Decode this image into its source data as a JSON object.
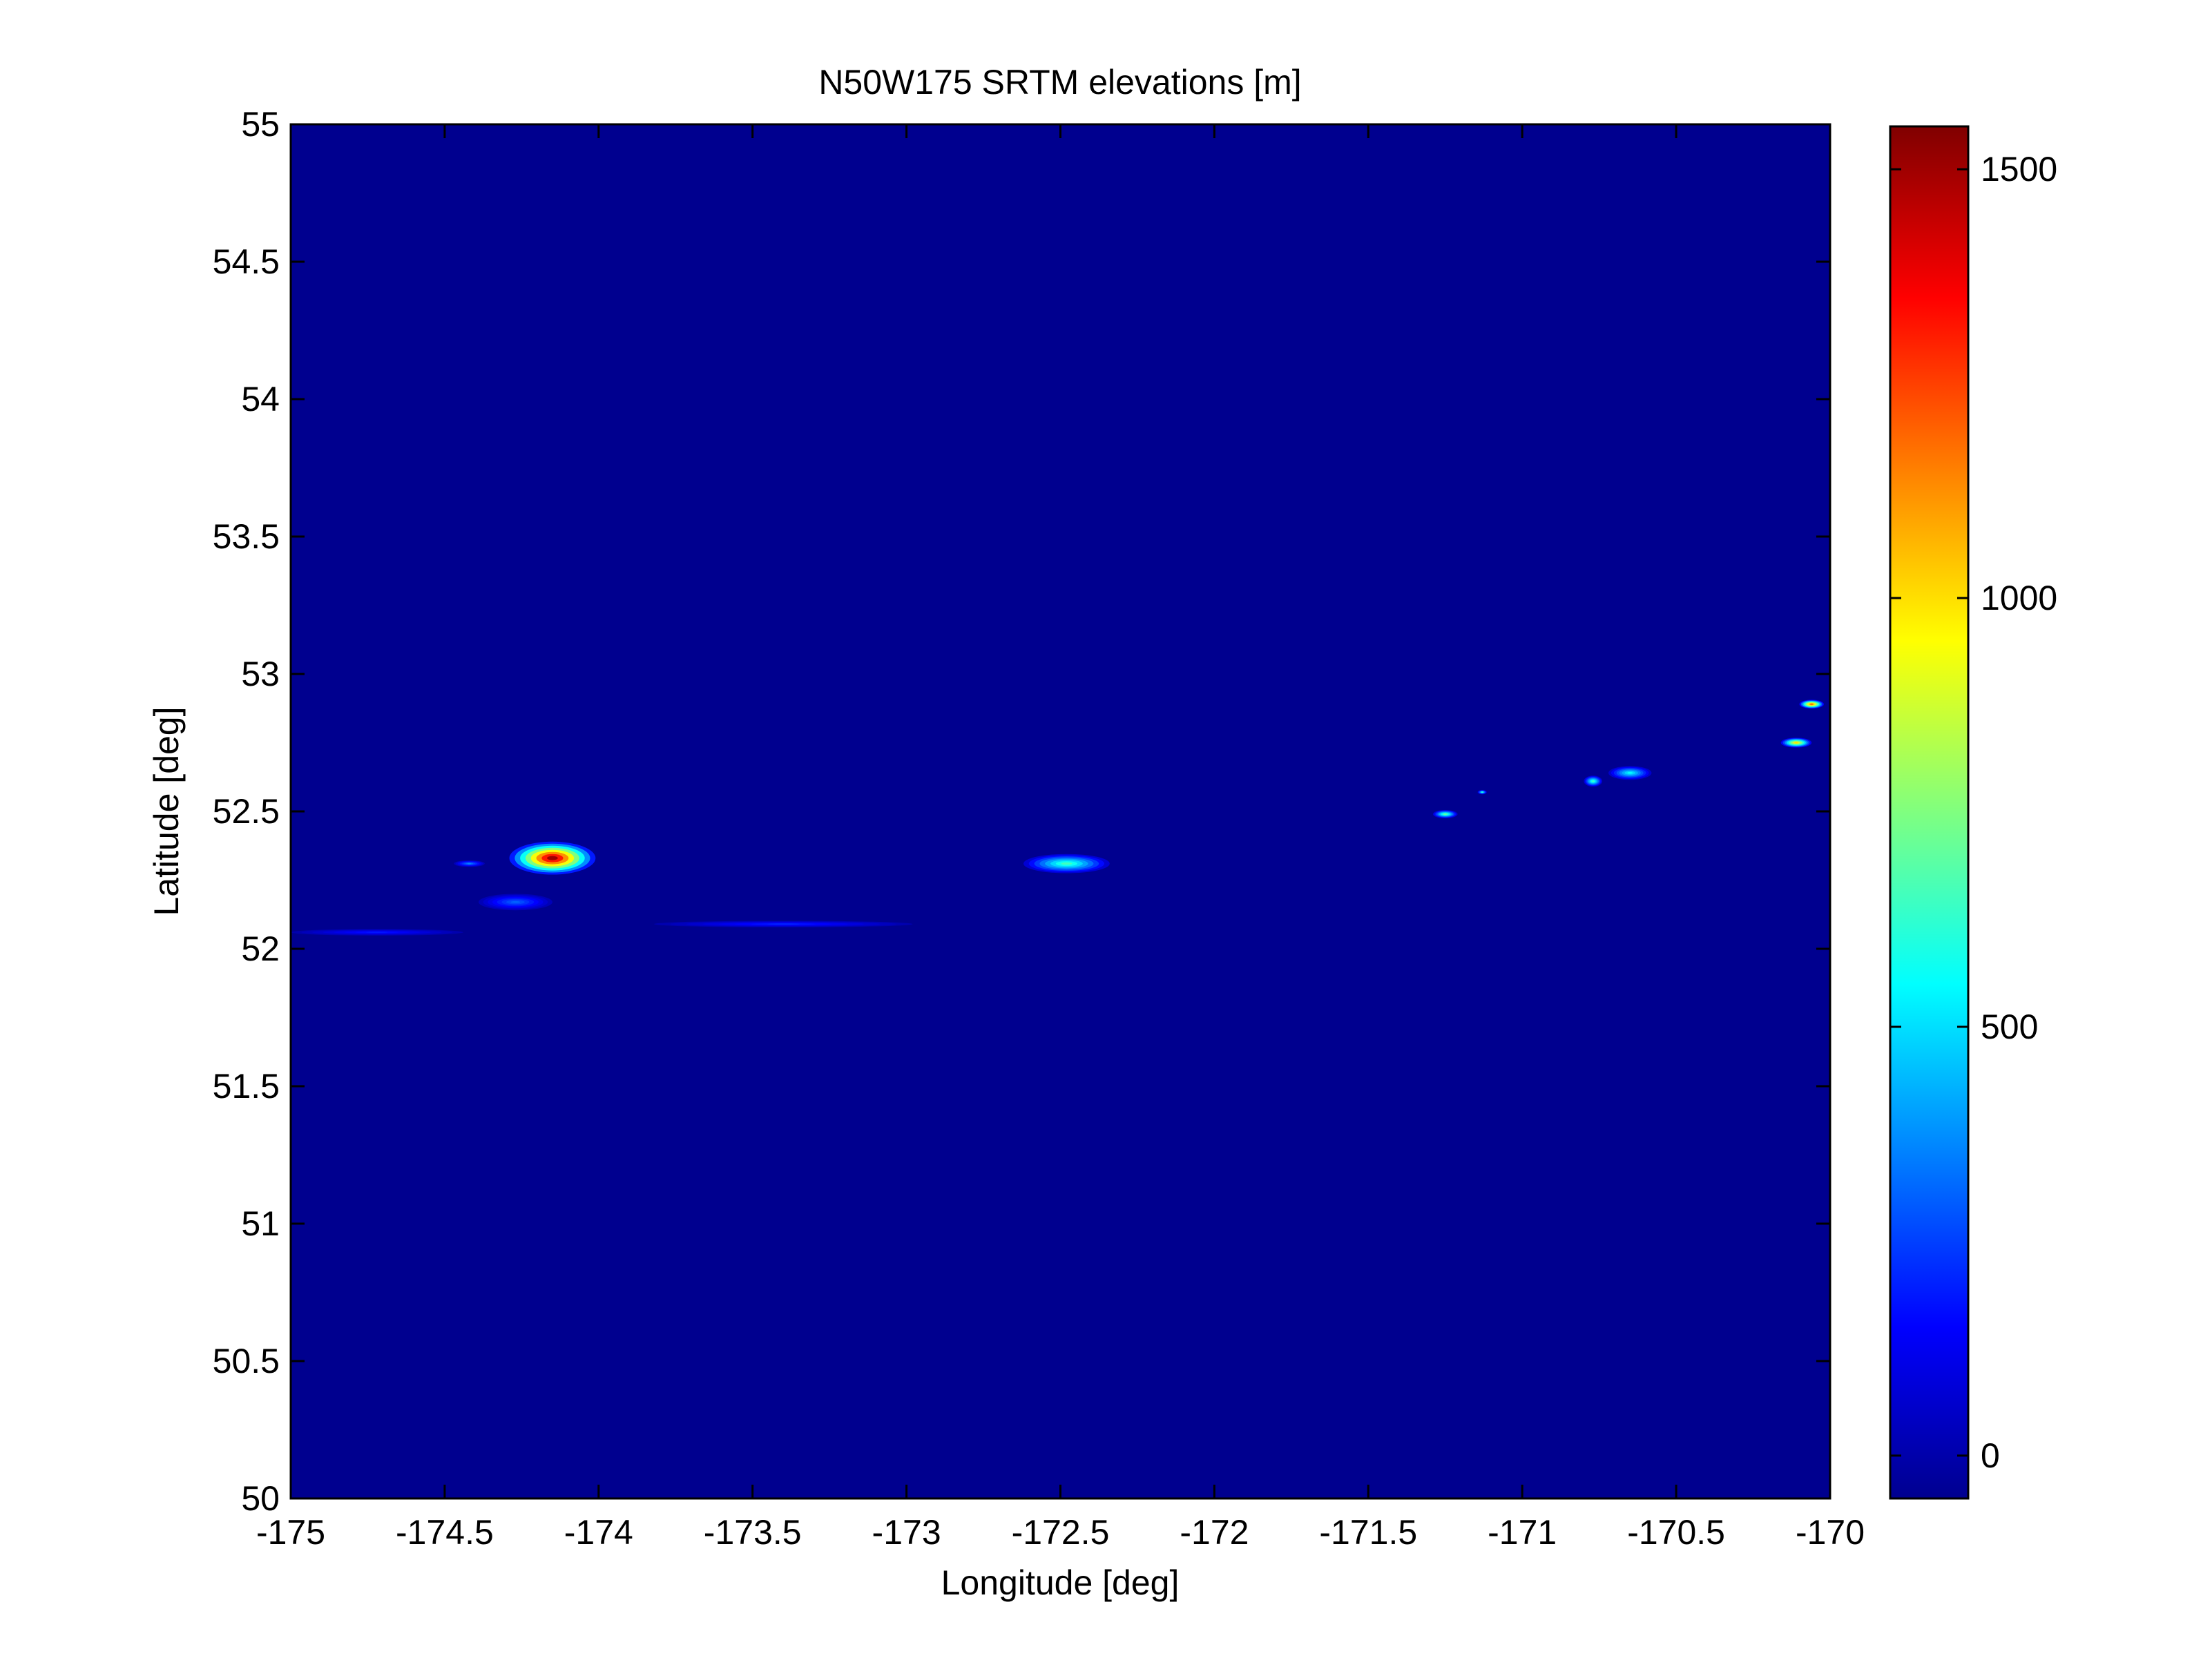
{
  "chart_data": {
    "type": "heatmap",
    "title": "N50W175 SRTM elevations [m]",
    "xlabel": "Longitude [deg]",
    "ylabel": "Latitude [deg]",
    "xlim": [
      -175,
      -170
    ],
    "ylim": [
      50,
      55
    ],
    "xticks": [
      -175,
      -174.5,
      -174,
      -173.5,
      -173,
      -172.5,
      -172,
      -171.5,
      -171,
      -170.5,
      -170
    ],
    "xtick_labels": [
      "-175",
      "-174.5",
      "-174",
      "-173.5",
      "-173",
      "-172.5",
      "-172",
      "-171.5",
      "-171",
      "-170.5",
      "-170"
    ],
    "yticks": [
      50,
      50.5,
      51,
      51.5,
      52,
      52.5,
      53,
      53.5,
      54,
      54.5,
      55
    ],
    "ytick_labels": [
      "50",
      "50.5",
      "51",
      "51.5",
      "52",
      "52.5",
      "53",
      "53.5",
      "54",
      "54.5",
      "55"
    ],
    "colormap": "jet",
    "background_color": "#00008f",
    "colorbar": {
      "range": [
        -50,
        1550
      ],
      "ticks": [
        0,
        500,
        1000,
        1500
      ],
      "tick_labels": [
        "0",
        "500",
        "1000",
        "1500"
      ],
      "position": "right"
    },
    "grid": false,
    "features": [
      {
        "lon": -174.15,
        "lat": 52.33,
        "rx": 0.14,
        "ry": 0.06,
        "peak": 1500
      },
      {
        "lon": -174.42,
        "lat": 52.31,
        "rx": 0.05,
        "ry": 0.012,
        "peak": 350
      },
      {
        "lon": -174.27,
        "lat": 52.17,
        "rx": 0.12,
        "ry": 0.03,
        "peak": 300
      },
      {
        "lon": -172.48,
        "lat": 52.31,
        "rx": 0.14,
        "ry": 0.035,
        "peak": 650
      },
      {
        "lon": -171.25,
        "lat": 52.49,
        "rx": 0.04,
        "ry": 0.015,
        "peak": 700
      },
      {
        "lon": -171.13,
        "lat": 52.57,
        "rx": 0.015,
        "ry": 0.008,
        "peak": 600
      },
      {
        "lon": -170.77,
        "lat": 52.61,
        "rx": 0.03,
        "ry": 0.02,
        "peak": 650
      },
      {
        "lon": -170.65,
        "lat": 52.64,
        "rx": 0.07,
        "ry": 0.025,
        "peak": 550
      },
      {
        "lon": -170.11,
        "lat": 52.75,
        "rx": 0.05,
        "ry": 0.018,
        "peak": 1000
      },
      {
        "lon": -170.06,
        "lat": 52.89,
        "rx": 0.04,
        "ry": 0.016,
        "peak": 1200
      },
      {
        "lon": -174.72,
        "lat": 52.06,
        "rx": 0.28,
        "ry": 0.012,
        "peak": 180
      },
      {
        "lon": -173.4,
        "lat": 52.09,
        "rx": 0.42,
        "ry": 0.012,
        "peak": 200
      }
    ]
  }
}
